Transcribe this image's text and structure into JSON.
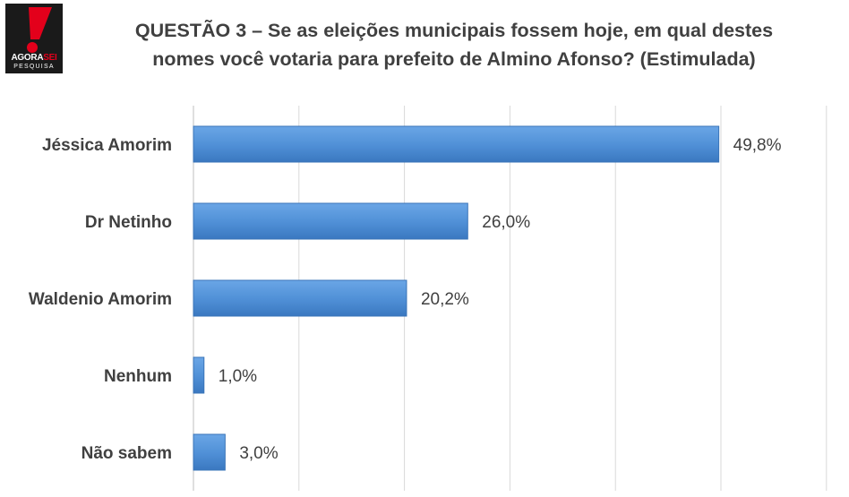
{
  "logo": {
    "brand_a": "AGORA",
    "brand_b": "SEI",
    "subtitle": "PESQUISA",
    "colors": {
      "background": "#1a1a1a",
      "accent": "#e3001b"
    }
  },
  "chart_data": {
    "type": "bar",
    "orientation": "horizontal",
    "title_lines": [
      "QUESTÃO 3 – Se as eleições municipais fossem hoje, em qual destes",
      "nomes você votaria para prefeito de Almino Afonso? (Estimulada)"
    ],
    "categories": [
      "Jéssica Amorim",
      "Dr Netinho",
      "Waldenio Amorim",
      "Nenhum",
      "Não sabem"
    ],
    "values": [
      49.8,
      26.0,
      20.2,
      1.0,
      3.0
    ],
    "value_labels": [
      "49,8%",
      "26,0%",
      "20,2%",
      "1,0%",
      "3,0%"
    ],
    "xlim": [
      0,
      60
    ],
    "grid": true,
    "bar_color": "#4f8fd6",
    "legend": "none"
  }
}
